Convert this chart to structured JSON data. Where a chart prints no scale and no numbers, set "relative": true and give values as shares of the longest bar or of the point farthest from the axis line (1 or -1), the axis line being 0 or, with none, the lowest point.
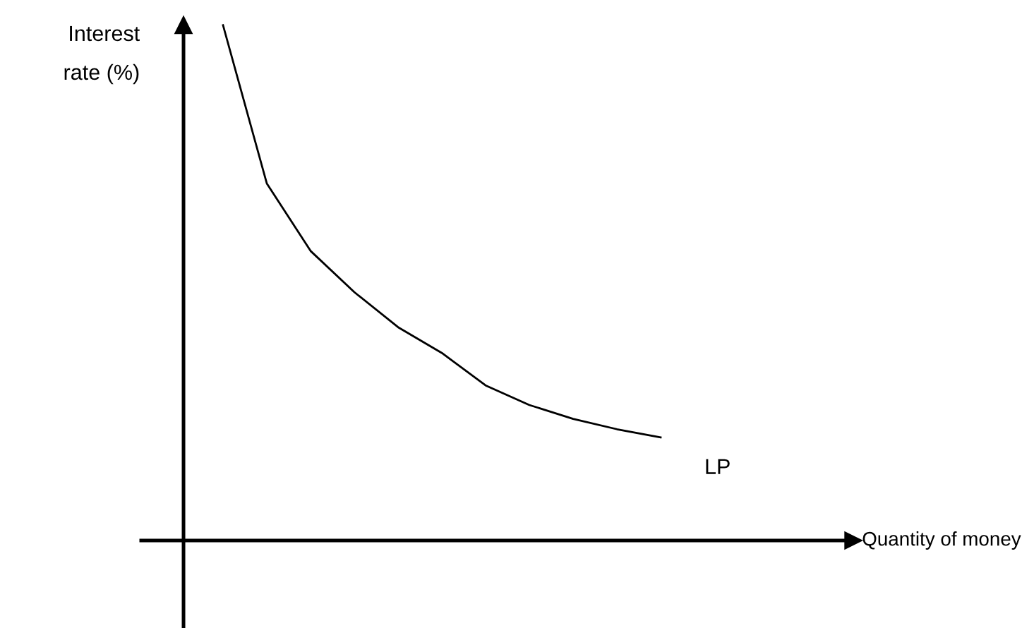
{
  "chart_data": {
    "type": "line",
    "relative": true,
    "annotations": [
      "Quantity of money"
    ],
    "ylabel": "Interest rate (%)",
    "categories": [
      null,
      null,
      null,
      null,
      null,
      null,
      null,
      null,
      null,
      null,
      null
    ],
    "series": [
      {
        "name": "LP",
        "color": "#000000",
        "values": [
          1,
          0.693,
          0.562,
          0.482,
          0.414,
          0.364,
          0.301,
          0.263,
          0.236,
          0.216,
          0.2
        ]
      }
    ],
    "marker": "none",
    "line_style": "solid",
    "legend": false
  }
}
